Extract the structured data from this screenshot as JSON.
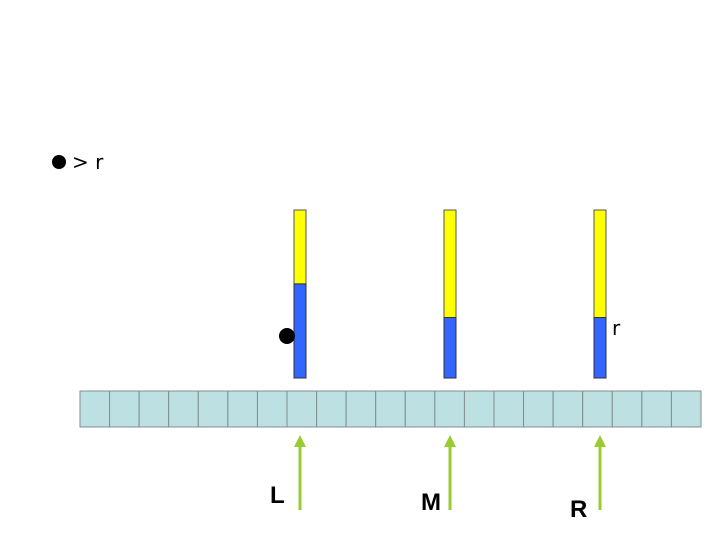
{
  "legend": {
    "text": "> r"
  },
  "array": {
    "cell_count": 21,
    "cell_color": "#bde0e2"
  },
  "bars": [
    {
      "name": "left",
      "fill_fraction": 0.56
    },
    {
      "name": "middle",
      "fill_fraction": 0.36
    },
    {
      "name": "right",
      "fill_fraction": 0.36
    }
  ],
  "bar_colors": {
    "top": "#ffff00",
    "bottom": "#3366ff"
  },
  "pointers": [
    {
      "label": "L"
    },
    {
      "label": "M"
    },
    {
      "label": "R"
    }
  ],
  "pointer_color": "#99cc33",
  "threshold_label": "r"
}
